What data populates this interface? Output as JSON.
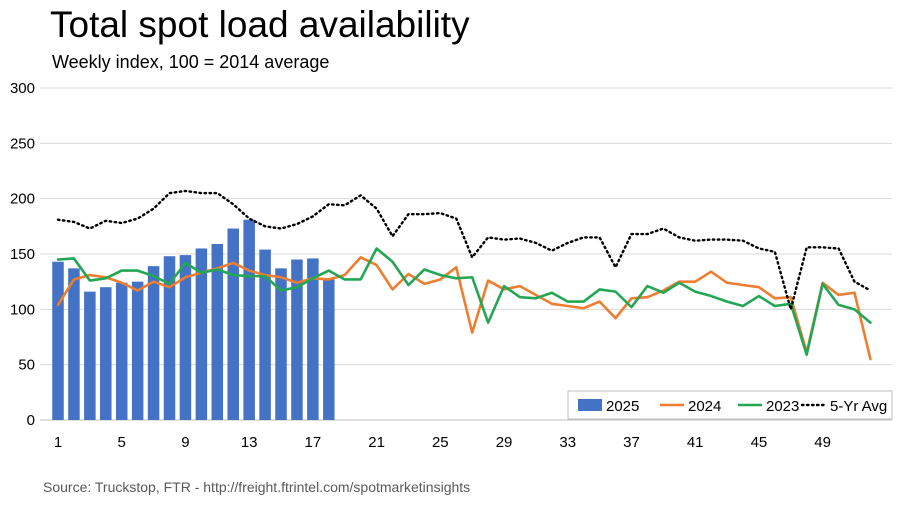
{
  "title": "Total spot load availability",
  "subtitle": "Weekly index, 100 = 2014 average",
  "source": "Source: Truckstop, FTR - http://freight.ftrintel.com/spotmarketinsights",
  "chart_data": {
    "type": "bar",
    "title": "Total spot load availability",
    "subtitle": "Weekly index, 100 = 2014 average",
    "xlabel": "",
    "ylabel": "",
    "ylim": [
      0,
      300
    ],
    "yticks": [
      0,
      50,
      100,
      150,
      200,
      250,
      300
    ],
    "xlim": [
      1,
      52
    ],
    "xticks": [
      1,
      5,
      9,
      13,
      17,
      21,
      25,
      29,
      33,
      37,
      41,
      45,
      49
    ],
    "grid": "horizontal",
    "legend_position": "bottom-right",
    "series": [
      {
        "name": "2025",
        "type": "bar",
        "color": "#4472C4",
        "x": [
          1,
          2,
          3,
          4,
          5,
          6,
          7,
          8,
          9,
          10,
          11,
          12,
          13,
          14,
          15,
          16,
          17,
          18
        ],
        "values": [
          143,
          137,
          116,
          120,
          124,
          125,
          139,
          148,
          149,
          155,
          159,
          173,
          181,
          154,
          137,
          145,
          146,
          127
        ]
      },
      {
        "name": "2024",
        "type": "line",
        "color": "#ED7D31",
        "x": [
          1,
          2,
          3,
          4,
          5,
          6,
          7,
          8,
          9,
          10,
          11,
          12,
          13,
          14,
          15,
          16,
          17,
          18,
          19,
          20,
          21,
          22,
          23,
          24,
          25,
          26,
          27,
          28,
          29,
          30,
          31,
          32,
          33,
          34,
          35,
          36,
          37,
          38,
          39,
          40,
          41,
          42,
          43,
          44,
          45,
          46,
          47,
          48,
          49,
          50,
          51,
          52
        ],
        "values": [
          104,
          127,
          131,
          129,
          124,
          117,
          125,
          120,
          129,
          133,
          137,
          142,
          135,
          131,
          129,
          124,
          128,
          127,
          131,
          147,
          140,
          118,
          132,
          123,
          127,
          138,
          79,
          126,
          118,
          121,
          113,
          105,
          103,
          101,
          107,
          92,
          110,
          111,
          117,
          125,
          125,
          134,
          124,
          122,
          120,
          110,
          111,
          61,
          124,
          113,
          115,
          55
        ]
      },
      {
        "name": "2023",
        "type": "line",
        "color": "#23A755",
        "x": [
          1,
          2,
          3,
          4,
          5,
          6,
          7,
          8,
          9,
          10,
          11,
          12,
          13,
          14,
          15,
          16,
          17,
          18,
          19,
          20,
          21,
          22,
          23,
          24,
          25,
          26,
          27,
          28,
          29,
          30,
          31,
          32,
          33,
          34,
          35,
          36,
          37,
          38,
          39,
          40,
          41,
          42,
          43,
          44,
          45,
          46,
          47,
          48,
          49,
          50,
          51,
          52
        ],
        "values": [
          145,
          146,
          126,
          128,
          135,
          135,
          130,
          123,
          142,
          133,
          136,
          131,
          130,
          130,
          117,
          120,
          128,
          135,
          127,
          127,
          155,
          143,
          122,
          136,
          131,
          128,
          129,
          88,
          121,
          111,
          110,
          115,
          107,
          107,
          118,
          116,
          102,
          121,
          115,
          124,
          116,
          112,
          107,
          103,
          112,
          103,
          105,
          59,
          123,
          104,
          100,
          88
        ]
      },
      {
        "name": "5-Yr Avg",
        "type": "line",
        "style": "dotted",
        "color": "#000000",
        "x": [
          1,
          2,
          3,
          4,
          5,
          6,
          7,
          8,
          9,
          10,
          11,
          12,
          13,
          14,
          15,
          16,
          17,
          18,
          19,
          20,
          21,
          22,
          23,
          24,
          25,
          26,
          27,
          28,
          29,
          30,
          31,
          32,
          33,
          34,
          35,
          36,
          37,
          38,
          39,
          40,
          41,
          42,
          43,
          44,
          45,
          46,
          47,
          48,
          49,
          50,
          51,
          52
        ],
        "values": [
          181,
          179,
          173,
          180,
          178,
          182,
          191,
          205,
          207,
          205,
          205,
          195,
          182,
          175,
          173,
          177,
          184,
          195,
          194,
          203,
          191,
          166,
          186,
          186,
          187,
          182,
          147,
          165,
          163,
          164,
          160,
          153,
          160,
          165,
          165,
          138,
          168,
          168,
          173,
          165,
          162,
          163,
          163,
          162,
          155,
          152,
          100,
          156,
          156,
          155,
          125,
          117
        ]
      }
    ]
  }
}
